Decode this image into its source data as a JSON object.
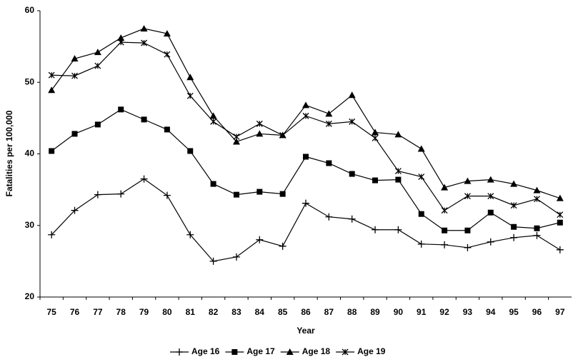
{
  "chart_data": {
    "type": "line",
    "x_label": "Year",
    "y_label": "Fatalities per 100,000",
    "categories": [
      "75",
      "76",
      "77",
      "78",
      "79",
      "80",
      "81",
      "82",
      "83",
      "84",
      "85",
      "86",
      "87",
      "88",
      "89",
      "90",
      "91",
      "92",
      "93",
      "94",
      "95",
      "96",
      "97"
    ],
    "series": [
      {
        "name": "Age 16",
        "color": "#000000",
        "marker": "plus",
        "values": [
          28.7,
          32.1,
          34.3,
          34.4,
          36.5,
          34.2,
          28.7,
          25.0,
          25.6,
          28.0,
          27.1,
          33.1,
          31.2,
          30.9,
          29.4,
          29.4,
          27.4,
          27.3,
          26.9,
          27.7,
          28.3,
          28.6,
          26.6
        ]
      },
      {
        "name": "Age 17",
        "color": "#000000",
        "marker": "square",
        "values": [
          40.4,
          42.8,
          44.1,
          46.2,
          44.8,
          43.4,
          40.4,
          35.8,
          34.3,
          34.7,
          34.4,
          39.6,
          38.7,
          37.2,
          36.3,
          36.4,
          31.6,
          29.3,
          29.3,
          31.8,
          29.8,
          29.6,
          30.4
        ]
      },
      {
        "name": "Age 18",
        "color": "#000000",
        "marker": "triangle",
        "values": [
          48.9,
          53.3,
          54.2,
          56.2,
          57.5,
          56.8,
          50.7,
          45.3,
          41.7,
          42.8,
          42.6,
          46.8,
          45.6,
          48.2,
          43.0,
          42.7,
          40.7,
          35.3,
          36.2,
          36.4,
          35.8,
          34.9,
          33.8
        ]
      },
      {
        "name": "Age 19",
        "color": "#000000",
        "marker": "asterisk",
        "values": [
          51.0,
          50.9,
          52.3,
          55.6,
          55.5,
          53.9,
          48.1,
          44.5,
          42.4,
          44.2,
          42.6,
          45.3,
          44.2,
          44.5,
          42.2,
          37.6,
          36.8,
          32.1,
          34.1,
          34.1,
          32.8,
          33.7,
          31.5
        ]
      }
    ],
    "ylim": [
      20,
      60
    ],
    "yticks": [
      20,
      30,
      40,
      50,
      60
    ],
    "grid": false,
    "legend": "bottom"
  }
}
